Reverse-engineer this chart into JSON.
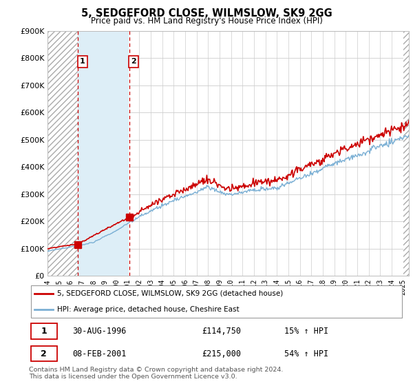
{
  "title": "5, SEDGEFORD CLOSE, WILMSLOW, SK9 2GG",
  "subtitle": "Price paid vs. HM Land Registry's House Price Index (HPI)",
  "ylim": [
    0,
    900000
  ],
  "yticks": [
    0,
    100000,
    200000,
    300000,
    400000,
    500000,
    600000,
    700000,
    800000,
    900000
  ],
  "ytick_labels": [
    "£0",
    "£100K",
    "£200K",
    "£300K",
    "£400K",
    "£500K",
    "£600K",
    "£700K",
    "£800K",
    "£900K"
  ],
  "red_line_color": "#cc0000",
  "blue_line_color": "#7aafd4",
  "hatch_fill_color": "#ddeef7",
  "background_color": "#ffffff",
  "grid_color": "#cccccc",
  "legend_label_red": "5, SEDGEFORD CLOSE, WILMSLOW, SK9 2GG (detached house)",
  "legend_label_blue": "HPI: Average price, detached house, Cheshire East",
  "sale1_label": "1",
  "sale1_date": "30-AUG-1996",
  "sale1_price": "£114,750",
  "sale1_hpi": "15% ↑ HPI",
  "sale1_year": 1996.66,
  "sale1_value": 114750,
  "sale2_label": "2",
  "sale2_date": "08-FEB-2001",
  "sale2_price": "£215,000",
  "sale2_hpi": "54% ↑ HPI",
  "sale2_year": 2001.11,
  "sale2_value": 215000,
  "footer": "Contains HM Land Registry data © Crown copyright and database right 2024.\nThis data is licensed under the Open Government Licence v3.0.",
  "xmin": 1994,
  "xmax": 2025.5
}
